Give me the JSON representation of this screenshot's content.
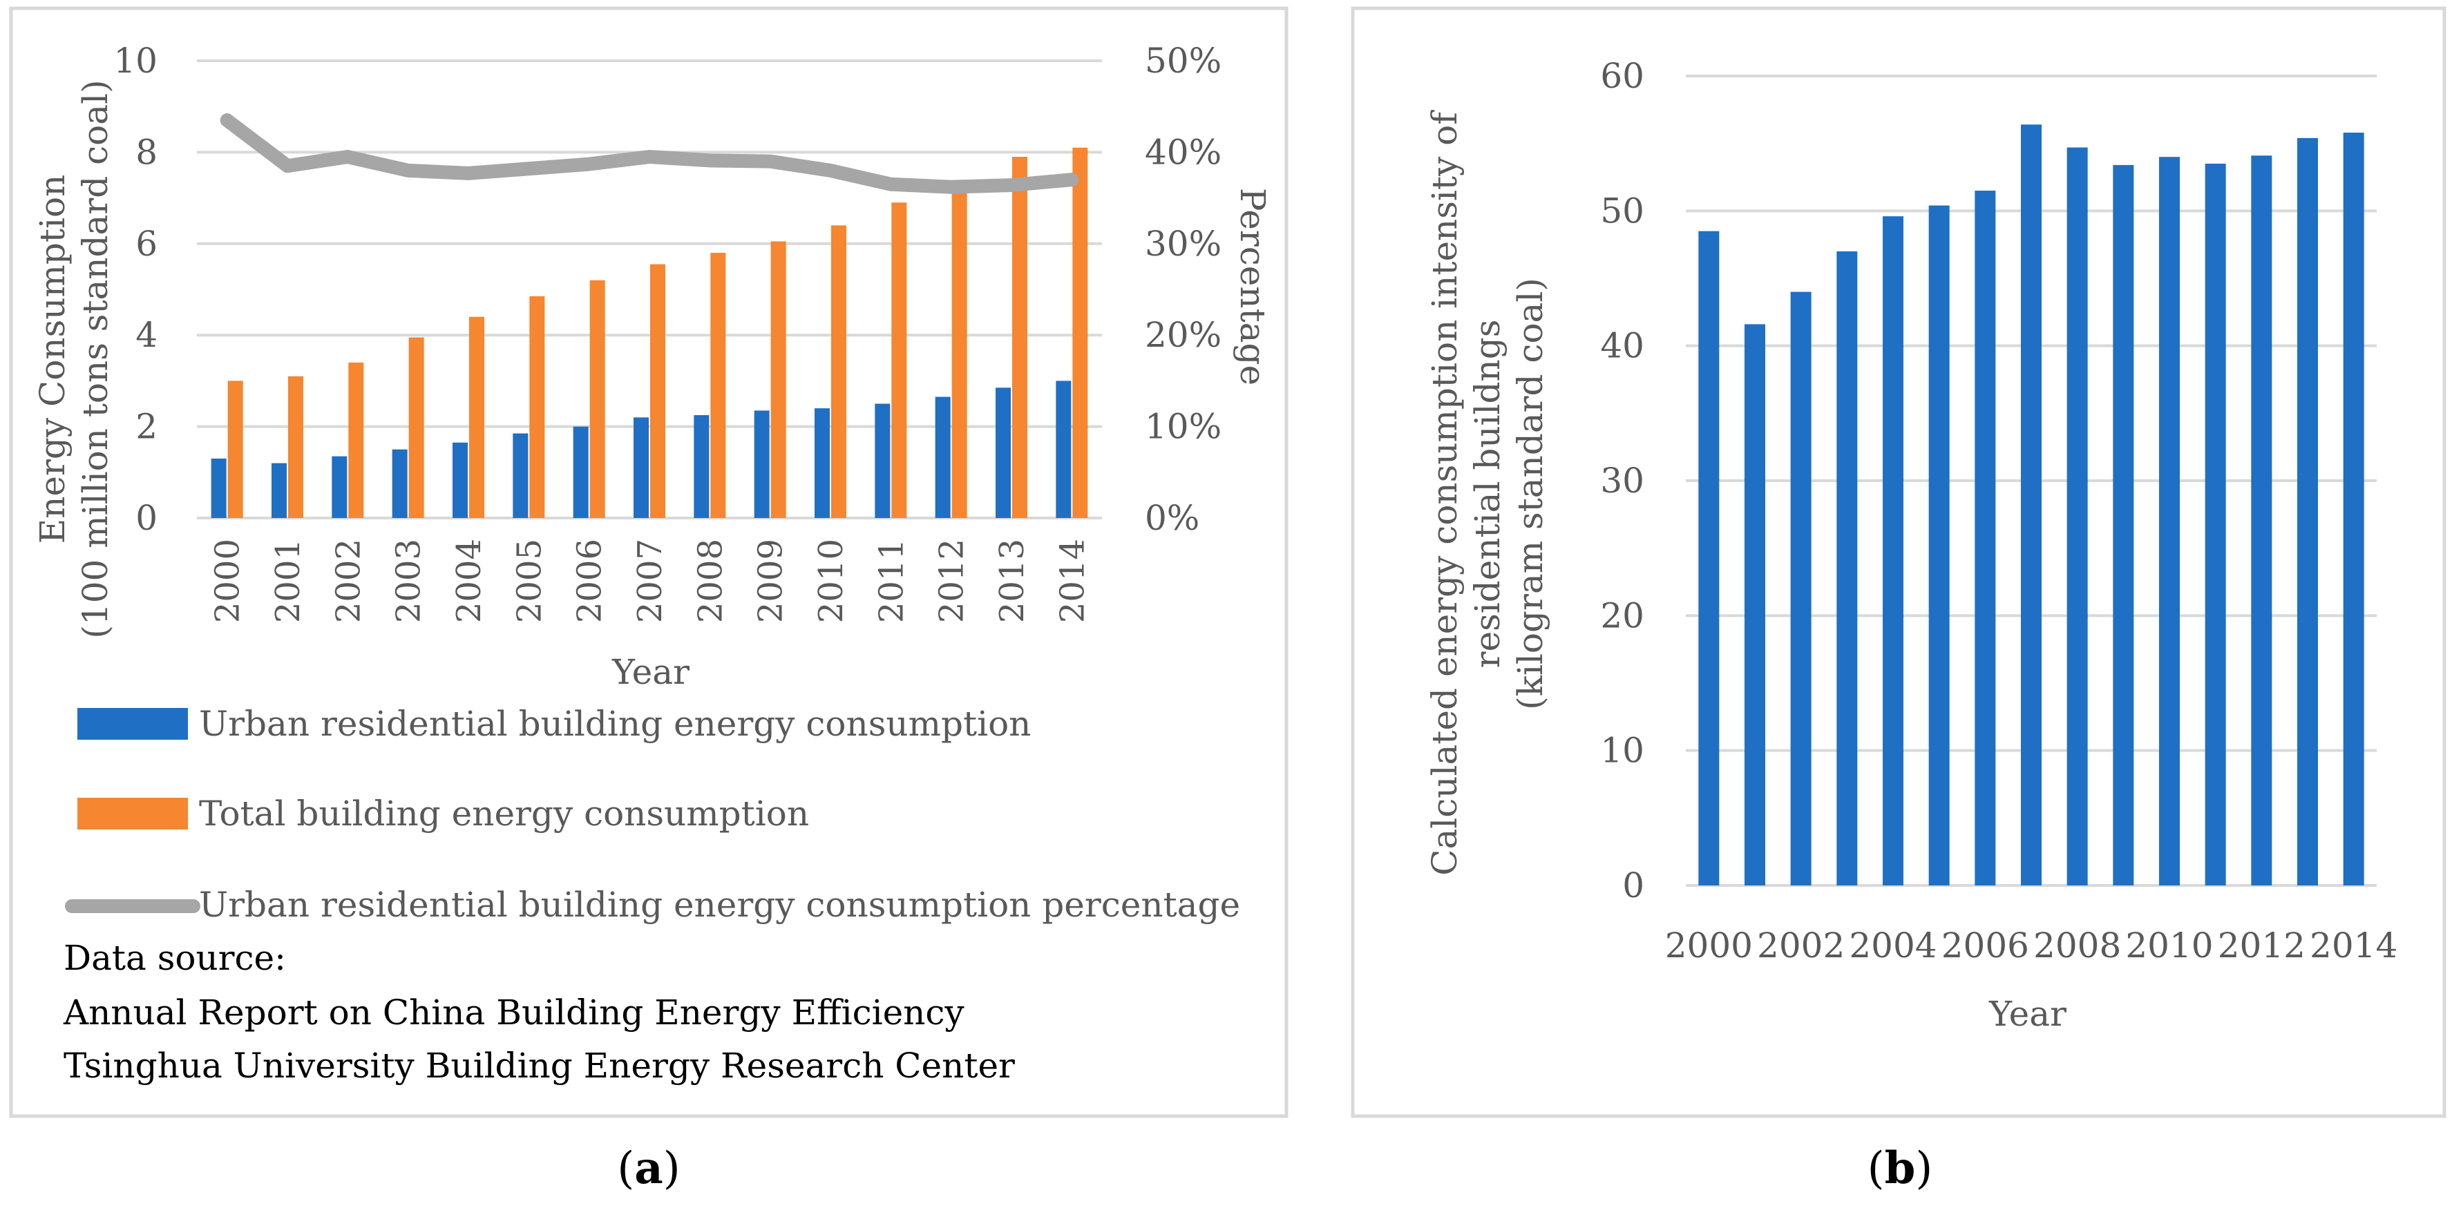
{
  "chart_data": [
    {
      "id": "a",
      "type": "bar+line",
      "panel_label": "a",
      "categories": [
        "2000",
        "2001",
        "2002",
        "2003",
        "2004",
        "2005",
        "2006",
        "2007",
        "2008",
        "2009",
        "2010",
        "2011",
        "2012",
        "2013",
        "2014"
      ],
      "series": [
        {
          "name": "Urban residential building energy consumption",
          "type": "bar",
          "axis": "left",
          "color": "#1f6fc5",
          "values": [
            1.3,
            1.2,
            1.35,
            1.5,
            1.65,
            1.85,
            2.0,
            2.2,
            2.25,
            2.35,
            2.4,
            2.5,
            2.65,
            2.85,
            3.0
          ]
        },
        {
          "name": "Total building energy consumption",
          "type": "bar",
          "axis": "left",
          "color": "#f68630",
          "values": [
            3.0,
            3.1,
            3.4,
            3.95,
            4.4,
            4.85,
            5.2,
            5.55,
            5.8,
            6.05,
            6.4,
            6.9,
            7.3,
            7.9,
            8.1
          ]
        },
        {
          "name": "Urban residential building energy consumption percentage",
          "type": "line",
          "axis": "right",
          "color": "#a6a6a6",
          "values": [
            43.5,
            38.5,
            39.5,
            38.0,
            37.7,
            38.2,
            38.7,
            39.5,
            39.1,
            39.0,
            38.0,
            36.5,
            36.2,
            36.4,
            37.0
          ]
        }
      ],
      "ylabel_line1": "Energy Consumption",
      "ylabel_line2": "(100 million tons standard coal)",
      "y2label": "Percentage",
      "xlabel": "Year",
      "ylim": [
        0,
        10
      ],
      "y_ticks": [
        "0",
        "2",
        "4",
        "6",
        "8",
        "10"
      ],
      "y2lim": [
        0,
        50
      ],
      "y2_ticks": [
        "0%",
        "10%",
        "20%",
        "30%",
        "40%",
        "50%"
      ],
      "grid": true,
      "legend_position": "bottom"
    },
    {
      "id": "b",
      "type": "bar",
      "panel_label": "b",
      "categories": [
        "2000",
        "2001",
        "2002",
        "2003",
        "2004",
        "2005",
        "2006",
        "2007",
        "2008",
        "2009",
        "2010",
        "2011",
        "2012",
        "2013",
        "2014"
      ],
      "x_tick_labels": [
        "2000",
        "",
        "2002",
        "",
        "2004",
        "",
        "2006",
        "",
        "2008",
        "",
        "2010",
        "",
        "2012",
        "",
        "2014"
      ],
      "values": [
        48.5,
        41.6,
        44.0,
        47.0,
        49.6,
        50.4,
        51.5,
        56.4,
        54.7,
        53.4,
        54.0,
        53.5,
        54.1,
        55.4,
        55.8
      ],
      "color": "#1f6fc5",
      "ylabel_line1": "Calculated energy consumption intensity of",
      "ylabel_line2": "residential buildngs",
      "ylabel_line3": "(kilogram standard coal)",
      "xlabel": "Year",
      "ylim": [
        0,
        60
      ],
      "y_ticks": [
        "0",
        "10",
        "20",
        "30",
        "40",
        "50",
        "60"
      ],
      "grid": true
    }
  ],
  "source_note": {
    "heading": "Data source:",
    "line1": "Annual Report on China Building Energy Efficiency",
    "line2": "Tsinghua University Building Energy Research Center"
  }
}
